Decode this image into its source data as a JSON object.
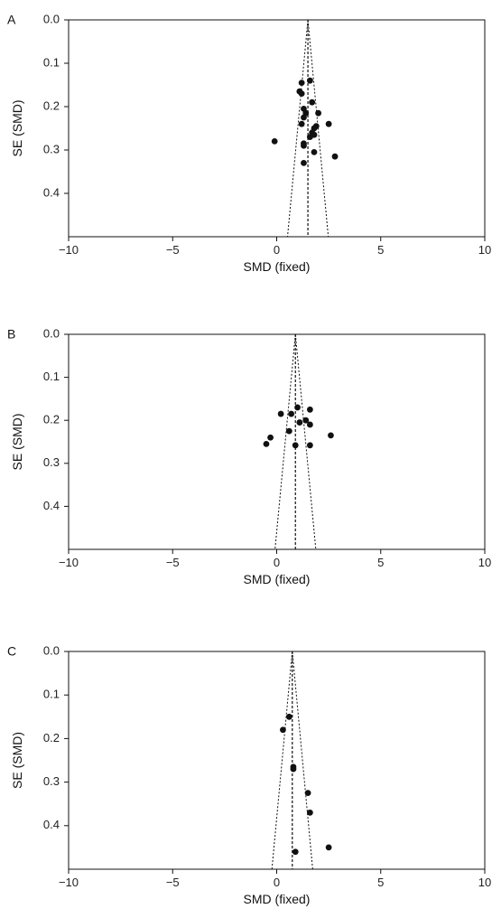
{
  "colors": {
    "axis": "#111111",
    "point": "#111111",
    "background": "#ffffff"
  },
  "chart_data": [
    {
      "type": "scatter",
      "panel_label": "A",
      "xlabel": "SMD (fixed)",
      "ylabel": "SE (SMD)",
      "xlim": [
        -10,
        10
      ],
      "ylim": [
        0,
        0.5
      ],
      "y_inverted": true,
      "x_ticks": [
        "−10",
        "−5",
        "0",
        "5",
        "10"
      ],
      "x_tick_values": [
        -10,
        -5,
        0,
        5,
        10
      ],
      "y_ticks": [
        "0.0",
        "0.1",
        "0.2",
        "0.3",
        "0.4"
      ],
      "y_tick_values": [
        0,
        0.1,
        0.2,
        0.3,
        0.4
      ],
      "pooled_smd": 1.5,
      "grid": false,
      "points": [
        {
          "x": 1.6,
          "y": 0.14
        },
        {
          "x": 1.2,
          "y": 0.145
        },
        {
          "x": 1.1,
          "y": 0.165
        },
        {
          "x": 1.2,
          "y": 0.17
        },
        {
          "x": 1.7,
          "y": 0.19
        },
        {
          "x": 1.3,
          "y": 0.205
        },
        {
          "x": 1.4,
          "y": 0.215
        },
        {
          "x": 2.0,
          "y": 0.215
        },
        {
          "x": 1.3,
          "y": 0.225
        },
        {
          "x": 1.2,
          "y": 0.24
        },
        {
          "x": 2.5,
          "y": 0.24
        },
        {
          "x": 1.9,
          "y": 0.245
        },
        {
          "x": 1.8,
          "y": 0.25
        },
        {
          "x": 1.7,
          "y": 0.26
        },
        {
          "x": 1.8,
          "y": 0.265
        },
        {
          "x": 1.6,
          "y": 0.27
        },
        {
          "x": -0.1,
          "y": 0.28
        },
        {
          "x": 1.3,
          "y": 0.285
        },
        {
          "x": 1.3,
          "y": 0.29
        },
        {
          "x": 1.8,
          "y": 0.305
        },
        {
          "x": 2.8,
          "y": 0.315
        },
        {
          "x": 1.3,
          "y": 0.33
        }
      ]
    },
    {
      "type": "scatter",
      "panel_label": "B",
      "xlabel": "SMD (fixed)",
      "ylabel": "SE (SMD)",
      "xlim": [
        -10,
        10
      ],
      "ylim": [
        0,
        0.5
      ],
      "y_inverted": true,
      "x_ticks": [
        "−10",
        "−5",
        "0",
        "5",
        "10"
      ],
      "x_tick_values": [
        -10,
        -5,
        0,
        5,
        10
      ],
      "y_ticks": [
        "0.0",
        "0.1",
        "0.2",
        "0.3",
        "0.4"
      ],
      "y_tick_values": [
        0,
        0.1,
        0.2,
        0.3,
        0.4
      ],
      "pooled_smd": 0.9,
      "grid": false,
      "points": [
        {
          "x": 1.0,
          "y": 0.17
        },
        {
          "x": 1.6,
          "y": 0.175
        },
        {
          "x": 0.2,
          "y": 0.185
        },
        {
          "x": 0.7,
          "y": 0.185
        },
        {
          "x": 1.4,
          "y": 0.2
        },
        {
          "x": 1.1,
          "y": 0.205
        },
        {
          "x": 1.6,
          "y": 0.21
        },
        {
          "x": 0.6,
          "y": 0.225
        },
        {
          "x": 2.6,
          "y": 0.235
        },
        {
          "x": -0.3,
          "y": 0.24
        },
        {
          "x": -0.5,
          "y": 0.255
        },
        {
          "x": 0.9,
          "y": 0.258
        },
        {
          "x": 1.6,
          "y": 0.258
        }
      ]
    },
    {
      "type": "scatter",
      "panel_label": "C",
      "xlabel": "SMD (fixed)",
      "ylabel": "SE (SMD)",
      "xlim": [
        -10,
        10
      ],
      "ylim": [
        0,
        0.5
      ],
      "y_inverted": true,
      "x_ticks": [
        "−10",
        "−5",
        "0",
        "5",
        "10"
      ],
      "x_tick_values": [
        -10,
        -5,
        0,
        5,
        10
      ],
      "y_ticks": [
        "0.0",
        "0.1",
        "0.2",
        "0.3",
        "0.4"
      ],
      "y_tick_values": [
        0,
        0.1,
        0.2,
        0.3,
        0.4
      ],
      "pooled_smd": 0.75,
      "grid": false,
      "points": [
        {
          "x": 0.6,
          "y": 0.15
        },
        {
          "x": 0.3,
          "y": 0.18
        },
        {
          "x": 0.8,
          "y": 0.265
        },
        {
          "x": 0.8,
          "y": 0.27
        },
        {
          "x": 1.5,
          "y": 0.325
        },
        {
          "x": 1.6,
          "y": 0.37
        },
        {
          "x": 2.5,
          "y": 0.45
        },
        {
          "x": 0.9,
          "y": 0.46
        }
      ]
    }
  ]
}
